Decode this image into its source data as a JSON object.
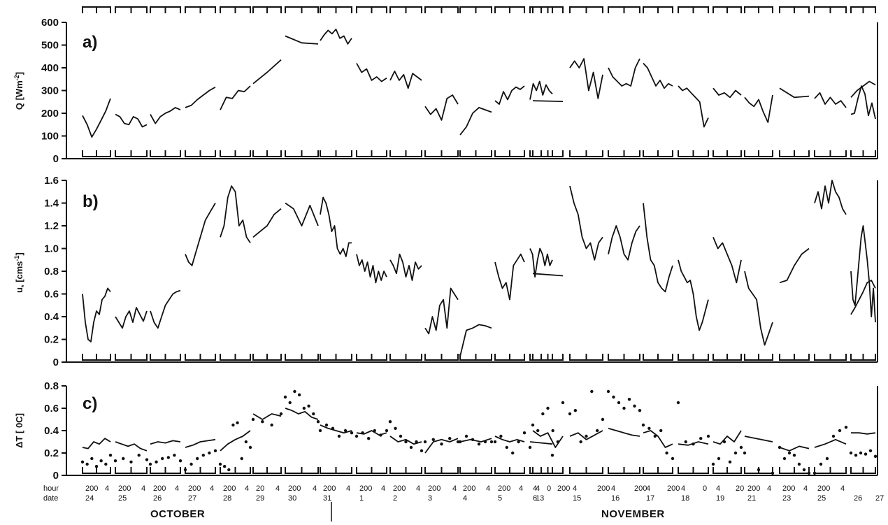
{
  "chart_data": [
    {
      "panel": "a)",
      "type": "line",
      "ylabel": "Q  [Wm",
      "ylabel_sup": "-2",
      "ylabel_end": "]",
      "ylim": [
        0,
        600
      ],
      "yticks": [
        "0",
        "100",
        "200",
        "300",
        "400",
        "500",
        "600"
      ],
      "series": [
        {
          "values": [
            [
              190,
              150,
              95,
              130,
              170,
              210,
              265
            ],
            [
              195,
              185,
              155,
              150,
              185,
              175,
              140,
              150
            ],
            [
              195,
              155,
              185,
              200,
              210,
              225,
              215
            ],
            [
              225,
              235,
              260,
              280,
              300,
              315
            ],
            [
              215,
              270,
              265,
              300,
              295,
              320
            ],
            [
              330,
              380,
              435
            ],
            [
              540,
              510,
              505
            ],
            [
              520,
              545,
              565,
              550,
              570,
              530,
              540,
              505,
              530
            ],
            [
              420,
              380,
              395,
              345,
              360,
              340,
              355
            ],
            [
              345,
              385,
              345,
              370,
              310,
              375,
              360,
              345
            ],
            [
              230,
              195,
              220,
              170,
              265,
              280,
              240
            ],
            [
              105,
              140,
              200,
              225,
              215,
              205
            ],
            [
              255,
              240,
              295,
              260,
              300,
              315,
              305,
              320
            ],
            [
              260,
              330,
              300,
              340,
              280,
              325,
              300,
              285
            ],
            [
              255,
              252
            ],
            [
              400,
              430,
              400,
              440,
              300,
              380,
              265,
              370
            ],
            [
              400,
              360,
              340,
              320,
              330,
              320,
              400,
              440
            ],
            [
              420,
              400,
              360,
              320,
              345,
              310,
              330,
              320
            ],
            [
              320,
              300,
              310,
              290,
              270,
              250,
              140,
              180
            ],
            [
              310,
              280,
              290,
              270,
              300,
              280
            ],
            [
              270,
              245,
              230,
              260,
              205,
              160,
              280
            ],
            [
              310,
              270,
              275
            ],
            [
              265,
              290,
              240,
              270,
              240,
              255,
              225
            ],
            [
              195,
              200,
              265,
              320,
              285,
              190,
              245,
              175
            ],
            [
              270,
              300,
              320,
              340,
              325
            ]
          ]
        }
      ]
    },
    {
      "panel": "b)",
      "type": "line",
      "ylabel": "u",
      "ylabel_sub": "*",
      "ylabel_mid": "  [cms",
      "ylabel_sup": "-1",
      "ylabel_end": "]",
      "ylim": [
        0,
        1.6
      ],
      "yticks": [
        "0",
        "0.2",
        "0.4",
        "0.6",
        "0.8",
        "1.0",
        "1.2",
        "1.4",
        "1.6"
      ],
      "series": [
        {
          "values": [
            [
              0.6,
              0.35,
              0.2,
              0.18,
              0.35,
              0.45,
              0.42,
              0.55,
              0.58,
              0.65,
              0.62
            ],
            [
              0.4,
              0.35,
              0.3,
              0.4,
              0.45,
              0.35,
              0.48,
              0.42,
              0.36,
              0.45
            ],
            [
              0.45,
              0.35,
              0.3,
              0.4,
              0.5,
              0.55,
              0.6,
              0.62,
              0.63
            ],
            [
              0.95,
              0.88,
              0.85,
              0.95,
              1.05,
              1.15,
              1.25,
              1.3,
              1.35,
              1.4
            ],
            [
              1.1,
              1.2,
              1.45,
              1.55,
              1.5,
              1.2,
              1.25,
              1.1,
              1.05
            ],
            [
              1.1,
              1.15,
              1.2,
              1.3,
              1.35
            ],
            [
              1.4,
              1.35,
              1.2,
              1.38,
              1.2
            ],
            [
              1.3,
              1.45,
              1.4,
              1.3,
              1.15,
              1.2,
              1.0,
              0.95,
              1.0,
              0.93,
              1.05,
              1.05
            ],
            [
              0.95,
              0.85,
              0.9,
              0.8,
              0.88,
              0.75,
              0.85,
              0.7,
              0.8,
              0.72,
              0.8,
              0.75
            ],
            [
              0.9,
              0.85,
              0.78,
              0.95,
              0.88,
              0.75,
              0.85,
              0.72,
              0.88,
              0.82,
              0.85
            ],
            [
              0.3,
              0.25,
              0.4,
              0.28,
              0.5,
              0.55,
              0.3,
              0.65,
              0.6,
              0.55
            ],
            [
              0.05,
              0.28,
              0.3,
              0.33,
              0.32,
              0.3
            ],
            [
              0.88,
              0.75,
              0.65,
              0.7,
              0.55,
              0.85,
              0.9,
              0.95,
              0.88
            ],
            [
              1.0,
              0.95,
              0.75,
              0.9,
              1.0,
              0.95,
              0.85,
              0.95,
              0.85,
              0.9
            ],
            [
              0.78,
              0.76
            ],
            [
              1.55,
              1.4,
              1.3,
              1.1,
              1.0,
              1.05,
              0.9,
              1.05,
              1.1
            ],
            [
              0.95,
              1.1,
              1.2,
              1.1,
              0.95,
              0.9,
              1.05,
              1.15,
              1.2
            ],
            [
              1.4,
              1.1,
              0.9,
              0.85,
              0.7,
              0.65,
              0.62,
              0.75,
              0.85
            ],
            [
              0.9,
              0.8,
              0.75,
              0.7,
              0.72,
              0.6,
              0.4,
              0.28,
              0.35,
              0.45,
              0.55
            ],
            [
              1.1,
              1.0,
              1.05,
              0.95,
              0.85,
              0.7,
              0.9
            ],
            [
              0.8,
              0.65,
              0.6,
              0.55,
              0.3,
              0.15,
              0.25,
              0.35
            ],
            [
              0.7,
              0.72,
              0.85,
              0.95,
              1.0
            ],
            [
              1.4,
              1.5,
              1.35,
              1.55,
              1.4,
              1.6,
              1.5,
              1.45,
              1.35,
              1.3
            ],
            [
              0.8,
              0.55,
              0.5,
              0.7,
              0.9,
              1.1,
              1.2,
              1.05,
              0.9,
              0.7,
              0.4,
              0.65,
              0.35
            ],
            [
              0.42,
              0.48,
              0.55,
              0.62,
              0.7,
              0.72,
              0.65
            ]
          ]
        }
      ]
    },
    {
      "panel": "c)",
      "type": "scatter",
      "ylabel": "ΔT  [ 0C]",
      "ylim": [
        0,
        0.8
      ],
      "yticks": [
        "0",
        "0.2",
        "0.4",
        "0.6",
        "0.8"
      ],
      "line_segments": [
        [
          0.25,
          0.24,
          0.3,
          0.28,
          0.33,
          0.3
        ],
        [
          0.3,
          0.28,
          0.26,
          0.28,
          0.24,
          0.22
        ],
        [
          0.28,
          0.3,
          0.29,
          0.31,
          0.3
        ],
        [
          0.25,
          0.27,
          0.3,
          0.31,
          0.32
        ],
        [
          0.22,
          0.28,
          0.32,
          0.35,
          0.4
        ],
        [
          0.55,
          0.5,
          0.55,
          0.53
        ],
        [
          0.6,
          0.58,
          0.55,
          0.57,
          0.52,
          0.5
        ],
        [
          0.45,
          0.42,
          0.4,
          0.38,
          0.4
        ],
        [
          0.38,
          0.37,
          0.4,
          0.36,
          0.38
        ],
        [
          0.35,
          0.3,
          0.32,
          0.28,
          0.3
        ],
        [
          0.2,
          0.3,
          0.32,
          0.3,
          0.33
        ],
        [
          0.3,
          0.32,
          0.3,
          0.33
        ],
        [
          0.35,
          0.32,
          0.3,
          0.32,
          0.3
        ],
        [
          0.3,
          0.28
        ],
        [
          0.4,
          0.35,
          0.38,
          0.25,
          0.35
        ],
        [
          0.35,
          0.38,
          0.32,
          0.36,
          0.4
        ],
        [
          0.42,
          0.4,
          0.38,
          0.36,
          0.35
        ],
        [
          0.38,
          0.4,
          0.35,
          0.25,
          0.28
        ],
        [
          0.28,
          0.27,
          0.3,
          0.28
        ],
        [
          0.3,
          0.28,
          0.35,
          0.3,
          0.4
        ],
        [
          0.35,
          0.3
        ],
        [
          0.25,
          0.22,
          0.26,
          0.24
        ],
        [
          0.25,
          0.28,
          0.32,
          0.28
        ],
        [
          0.38,
          0.38,
          0.37,
          0.38
        ]
      ],
      "dots": [
        [
          0.12,
          0.1,
          0.15,
          0.08,
          0.13,
          0.1,
          0.18
        ],
        [
          0.13,
          0.15,
          0.12,
          0.18,
          0.14
        ],
        [
          0.1,
          0.12,
          0.15,
          0.16,
          0.18,
          0.13
        ],
        [
          0.05,
          0.1,
          0.15,
          0.18,
          0.2,
          0.22
        ],
        [
          0.1,
          0.08,
          0.05,
          0.45,
          0.47,
          0.15,
          0.3,
          0.25
        ],
        [
          0.5,
          0.48,
          0.45,
          0.55
        ],
        [
          0.7,
          0.65,
          0.75,
          0.72,
          0.6,
          0.62,
          0.55,
          0.48
        ],
        [
          0.4,
          0.45,
          0.42,
          0.35,
          0.4,
          0.38
        ],
        [
          0.35,
          0.38,
          0.33,
          0.4,
          0.36,
          0.4
        ],
        [
          0.48,
          0.42,
          0.35,
          0.3,
          0.25,
          0.3,
          0.22
        ],
        [
          0.3,
          0.32,
          0.28,
          0.33,
          0.3
        ],
        [
          0.3,
          0.35,
          0.32,
          0.28,
          0.3,
          0.3
        ],
        [
          0.3,
          0.35,
          0.25,
          0.2,
          0.3,
          0.38
        ],
        [
          0.25,
          0.18
        ],
        [
          0.45,
          0.4,
          0.55,
          0.6,
          0.4,
          0.3,
          0.65
        ],
        [
          0.55,
          0.58,
          0.3,
          0.35,
          0.75,
          0.4,
          0.5
        ],
        [
          0.75,
          0.7,
          0.65,
          0.6,
          0.68,
          0.62,
          0.58
        ],
        [
          0.45,
          0.42,
          0.35,
          0.4,
          0.2,
          0.15
        ],
        [
          0.65,
          0.3,
          0.28,
          0.33,
          0.35
        ],
        [
          0.1,
          0.15,
          0.3,
          0.12,
          0.2,
          0.25
        ],
        [
          0.2,
          0.05,
          0.02
        ],
        [
          0.25,
          0.15,
          0.2,
          0.18,
          0.1,
          0.05,
          0.02
        ],
        [
          0.02,
          0.1,
          0.15,
          0.35,
          0.4,
          0.43
        ],
        [
          0.2,
          0.18,
          0.2,
          0.19,
          0.22,
          0.17
        ]
      ]
    }
  ],
  "x_axis": {
    "hour_label": "hour",
    "date_label": "date",
    "hour_ticks": [
      "200",
      "4",
      "200",
      "4",
      "200",
      "4",
      "200",
      "4",
      "200",
      "4",
      "20",
      "4",
      "200",
      "4",
      "200",
      "4",
      "200",
      "4",
      "200",
      "4",
      "200",
      "4",
      "200",
      "4",
      "200",
      "4",
      "4",
      "0",
      "4",
      "200",
      "4",
      "200",
      "4",
      "200",
      "4",
      "200",
      "4",
      "0",
      "4",
      "20",
      "200",
      "4",
      "200",
      "4",
      "200",
      "4"
    ],
    "dates": [
      "24",
      "25",
      "26",
      "27",
      "28",
      "29",
      "30",
      "31",
      "1",
      "2",
      "3",
      "4",
      "5",
      "6",
      "13",
      "15",
      "16",
      "17",
      "18",
      "19",
      "21",
      "23",
      "25",
      "26",
      "27"
    ],
    "months": [
      "OCTOBER",
      "NOVEMBER"
    ]
  }
}
